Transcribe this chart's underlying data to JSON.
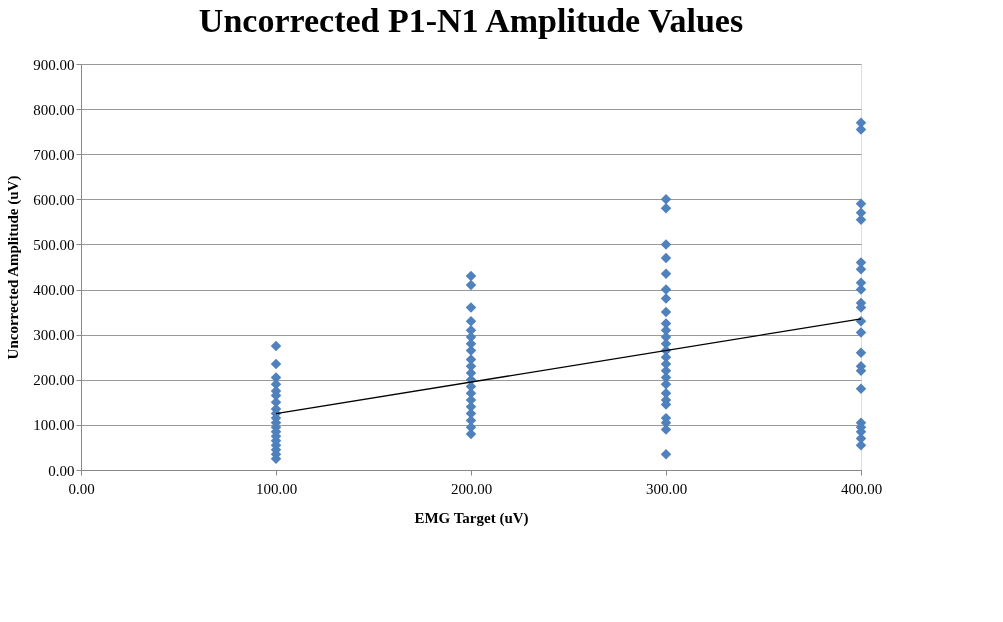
{
  "chart_data": {
    "type": "scatter",
    "title": "Uncorrected P1-N1 Amplitude Values",
    "xlabel": "EMG Target (uV)",
    "ylabel": "Uncorrected Amplitude (uV)",
    "xlim": [
      0,
      400
    ],
    "ylim": [
      0,
      900
    ],
    "xticks": [
      {
        "value": 0,
        "label": "0.00"
      },
      {
        "value": 100,
        "label": "100.00"
      },
      {
        "value": 200,
        "label": "200.00"
      },
      {
        "value": 300,
        "label": "300.00"
      },
      {
        "value": 400,
        "label": "400.00"
      }
    ],
    "yticks": [
      {
        "value": 0,
        "label": "0.00"
      },
      {
        "value": 100,
        "label": "100.00"
      },
      {
        "value": 200,
        "label": "200.00"
      },
      {
        "value": 300,
        "label": "300.00"
      },
      {
        "value": 400,
        "label": "400.00"
      },
      {
        "value": 500,
        "label": "500.00"
      },
      {
        "value": 600,
        "label": "600.00"
      },
      {
        "value": 700,
        "label": "700.00"
      },
      {
        "value": 800,
        "label": "800.00"
      },
      {
        "value": 900,
        "label": "900.00"
      }
    ],
    "grid": "y",
    "marker": "diamond",
    "series": [
      {
        "color": "#4f81bd",
        "x": [
          100,
          100,
          100,
          100,
          100,
          100,
          100,
          100,
          100,
          100,
          100,
          100,
          100,
          100,
          100,
          100,
          100,
          100,
          100,
          200,
          200,
          200,
          200,
          200,
          200,
          200,
          200,
          200,
          200,
          200,
          200,
          200,
          200,
          200,
          200,
          200,
          200,
          200,
          200,
          300,
          300,
          300,
          300,
          300,
          300,
          300,
          300,
          300,
          300,
          300,
          300,
          300,
          300,
          300,
          300,
          300,
          300,
          300,
          300,
          300,
          300,
          300,
          300,
          300,
          400,
          400,
          400,
          400,
          400,
          400,
          400,
          400,
          400,
          400,
          400,
          400,
          400,
          400,
          400,
          400,
          400,
          400,
          400,
          400,
          400,
          400
        ],
        "values": [
          275,
          235,
          205,
          190,
          175,
          165,
          150,
          135,
          125,
          115,
          105,
          95,
          85,
          75,
          65,
          55,
          45,
          35,
          25,
          430,
          410,
          360,
          330,
          310,
          295,
          280,
          265,
          245,
          230,
          215,
          200,
          185,
          170,
          155,
          140,
          125,
          110,
          95,
          80,
          600,
          580,
          500,
          470,
          435,
          400,
          380,
          350,
          325,
          310,
          295,
          280,
          265,
          250,
          235,
          220,
          205,
          190,
          170,
          155,
          145,
          115,
          105,
          90,
          35,
          770,
          755,
          590,
          570,
          555,
          460,
          445,
          415,
          400,
          370,
          360,
          330,
          305,
          260,
          230,
          220,
          180,
          105,
          95,
          85,
          70,
          55
        ]
      },
      {
        "type": "line",
        "color": "#000000",
        "marker": "none",
        "x": [
          100,
          400
        ],
        "values": [
          125,
          335
        ]
      }
    ]
  }
}
